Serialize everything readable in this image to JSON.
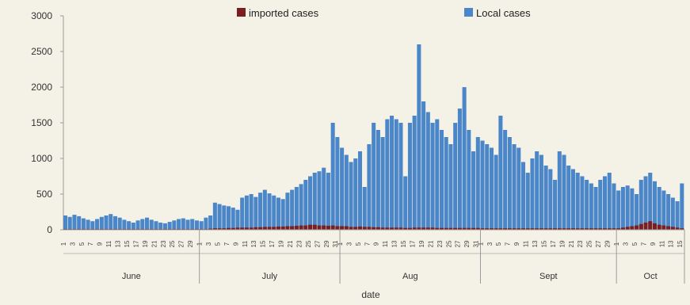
{
  "chart_data": {
    "type": "bar",
    "stacked": true,
    "xlabel": "date",
    "ylabel": "",
    "ylim": [
      0,
      3000
    ],
    "yticks": [
      0,
      500,
      1000,
      1500,
      2000,
      2500,
      3000
    ],
    "legend": {
      "position": "top",
      "entries": [
        "imported cases",
        "Local cases"
      ]
    },
    "colors": {
      "imported": "#7a1f1f",
      "local": "#4a86c8"
    },
    "months": [
      {
        "name": "June",
        "days": 30
      },
      {
        "name": "July",
        "days": 31
      },
      {
        "name": "Aug",
        "days": 31
      },
      {
        "name": "Sept",
        "days": 30
      },
      {
        "name": "Oct",
        "days": 15
      }
    ],
    "day_labels": [
      "1",
      "3",
      "5",
      "7",
      "9",
      "11",
      "13",
      "15",
      "17",
      "19",
      "21",
      "23",
      "25",
      "27",
      "29",
      "31"
    ],
    "series": [
      {
        "name": "Local cases",
        "values": [
          200,
          180,
          210,
          190,
          160,
          140,
          120,
          150,
          180,
          200,
          220,
          190,
          170,
          140,
          120,
          100,
          130,
          150,
          170,
          140,
          120,
          100,
          90,
          110,
          130,
          150,
          160,
          140,
          150,
          130,
          120,
          170,
          200,
          380,
          360,
          340,
          330,
          310,
          280,
          450,
          480,
          500,
          460,
          520,
          560,
          510,
          480,
          450,
          430,
          520,
          560,
          600,
          640,
          700,
          750,
          800,
          820,
          870,
          800,
          1500,
          1300,
          1150,
          1050,
          950,
          1000,
          1100,
          600,
          1200,
          1500,
          1400,
          1300,
          1550,
          1600,
          1550,
          1500,
          750,
          1500,
          1600,
          2600,
          1800,
          1650,
          1500,
          1550,
          1400,
          1300,
          1200,
          1500,
          1700,
          2000,
          1400,
          1100,
          1300,
          1250,
          1200,
          1150,
          1050,
          1600,
          1400,
          1300,
          1200,
          1150,
          950,
          800,
          1000,
          1100,
          1050,
          900,
          850,
          700,
          1100,
          1050,
          900,
          850,
          800,
          750,
          700,
          650,
          600,
          700,
          750,
          800,
          650,
          550,
          600,
          620,
          580,
          500,
          700,
          750,
          800,
          680,
          600,
          550,
          500,
          450,
          400,
          650
        ]
      },
      {
        "name": "imported cases",
        "values": [
          10,
          10,
          10,
          10,
          10,
          10,
          10,
          10,
          10,
          10,
          10,
          10,
          10,
          10,
          10,
          10,
          10,
          10,
          10,
          10,
          10,
          10,
          10,
          10,
          10,
          10,
          10,
          10,
          10,
          10,
          10,
          10,
          15,
          20,
          20,
          20,
          25,
          25,
          30,
          30,
          30,
          30,
          35,
          35,
          40,
          40,
          40,
          45,
          45,
          50,
          50,
          55,
          60,
          60,
          70,
          70,
          60,
          60,
          55,
          60,
          50,
          50,
          50,
          40,
          40,
          45,
          40,
          40,
          35,
          35,
          30,
          30,
          30,
          30,
          30,
          25,
          25,
          30,
          30,
          30,
          30,
          30,
          25,
          25,
          25,
          25,
          25,
          25,
          25,
          25,
          25,
          25,
          20,
          20,
          20,
          20,
          20,
          20,
          20,
          20,
          20,
          20,
          20,
          20,
          20,
          20,
          20,
          20,
          20,
          20,
          20,
          20,
          20,
          20,
          20,
          20,
          20,
          20,
          20,
          20,
          20,
          20,
          20,
          30,
          40,
          50,
          60,
          80,
          100,
          120,
          90,
          70,
          60,
          50,
          40,
          30,
          20
        ]
      }
    ]
  }
}
